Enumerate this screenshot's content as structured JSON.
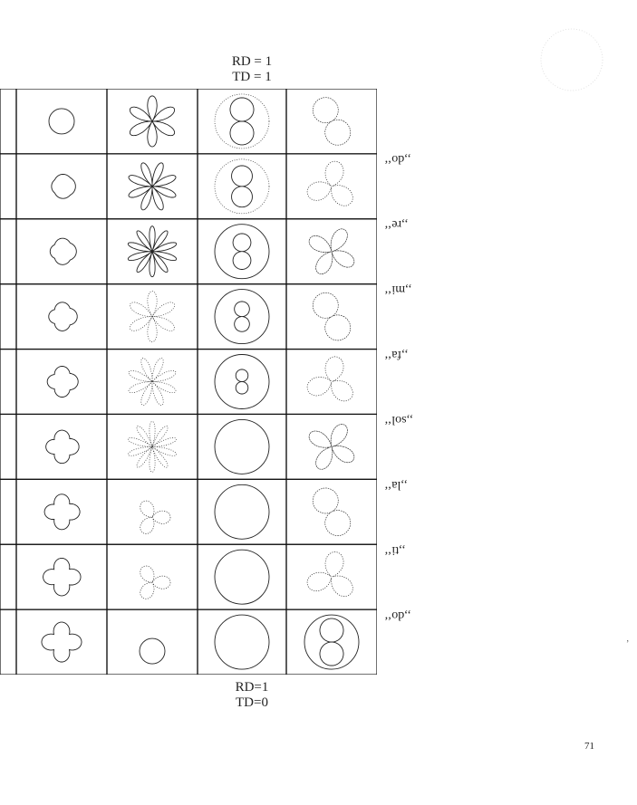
{
  "top_caption": {
    "line1": "RD = 1",
    "line2": "TD = 1"
  },
  "bottom_caption": {
    "line1": "RD=1",
    "line2": "TD=0"
  },
  "row_labels": [
    ",,do‘‘",
    ",,re‘‘",
    ",,mi‘‘",
    ",,fa‘‘",
    ",,sol‘‘",
    ",,la‘‘",
    ",,ti‘‘",
    ",,do‘‘"
  ],
  "page_number": "71",
  "stray_mark": "‚"
}
